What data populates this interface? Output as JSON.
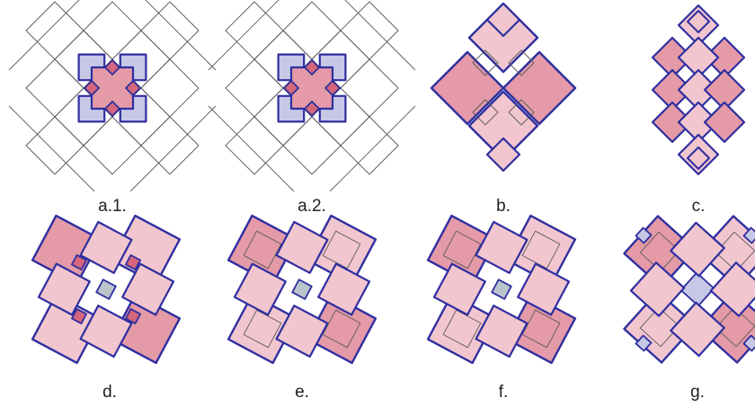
{
  "colors": {
    "outline_blue": "#2e2fa0",
    "thin_line": "#5a5a5a",
    "pink_light": "#f2c6cf",
    "pink_mid": "#e49aa7",
    "pink_dark": "#d5667c",
    "lavender": "#c7c8e6",
    "grey_blue": "#b9c5cb"
  },
  "panels": [
    {
      "id": "a1",
      "label": "a.1."
    },
    {
      "id": "a2",
      "label": "a.2."
    },
    {
      "id": "b",
      "label": "b."
    },
    {
      "id": "c",
      "label": "c."
    },
    {
      "id": "d",
      "label": "d."
    },
    {
      "id": "e",
      "label": "e."
    },
    {
      "id": "f",
      "label": "f."
    },
    {
      "id": "g",
      "label": "g."
    }
  ]
}
